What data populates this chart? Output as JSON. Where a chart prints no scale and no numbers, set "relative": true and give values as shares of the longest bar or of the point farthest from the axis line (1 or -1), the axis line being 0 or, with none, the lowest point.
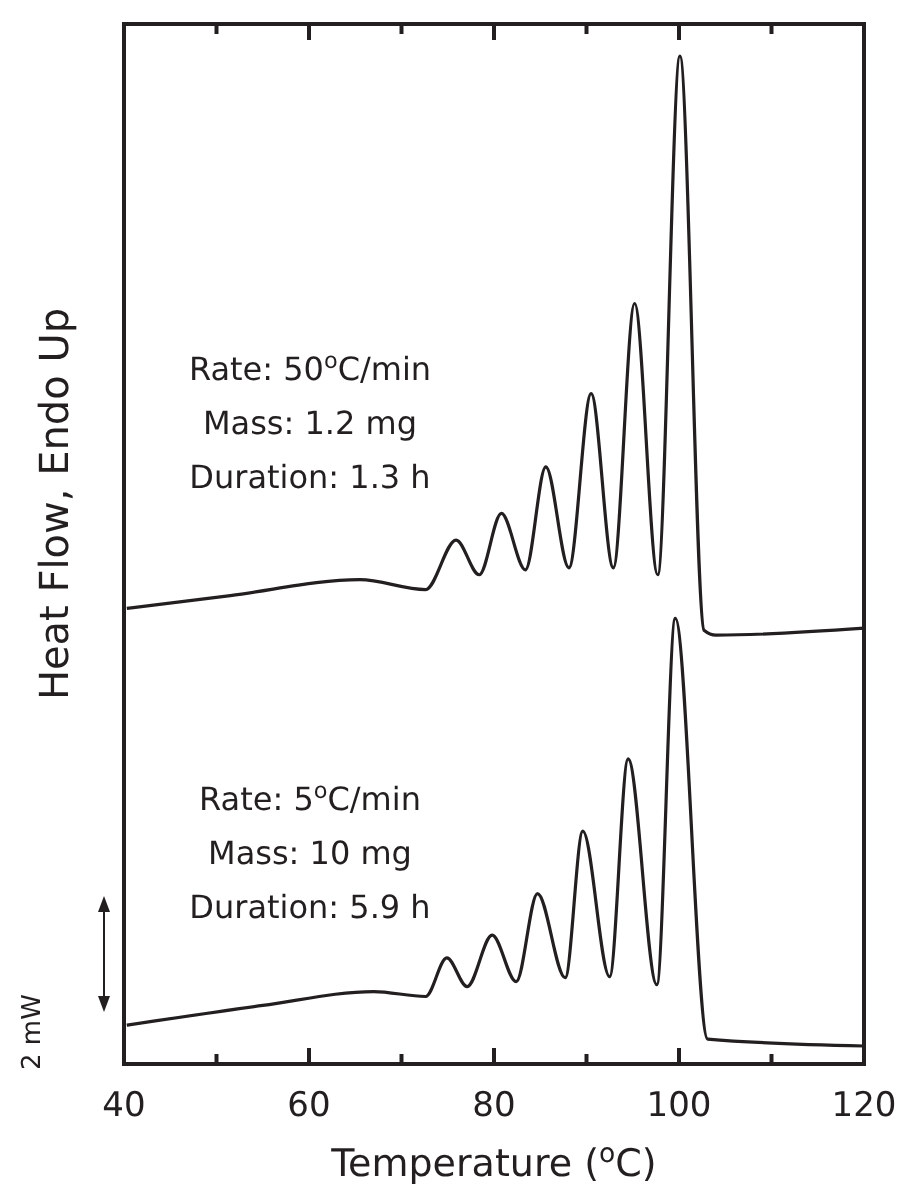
{
  "chart_data": {
    "type": "line",
    "relative": true,
    "xlabel": "Temperature ($^{o}$C)",
    "ylabel": "Heat Flow, Endo Up",
    "xlim": [
      40,
      120
    ],
    "xticks": [
      40,
      {
        "value": 50,
        "label": null
      },
      60,
      {
        "value": 70,
        "label": null
      },
      80,
      {
        "value": 90,
        "label": null
      },
      100,
      {
        "value": 110,
        "label": null
      },
      120
    ],
    "series": [
      {
        "color": "#231f20",
        "x": [
          40.3,
          51.5,
          65.5,
          72.6,
          75.9,
          78.4,
          80.8,
          83.4,
          85.6,
          88.1,
          90.5,
          92.9,
          95.2,
          97.7,
          100.1,
          102.7,
          104,
          120
        ],
        "values": [
          0.442,
          0.455,
          0.471,
          0.461,
          0.511,
          0.476,
          0.538,
          0.481,
          0.585,
          0.483,
          0.659,
          0.483,
          0.75,
          0.476,
          1,
          0.42,
          0.415,
          0.422
        ]
      },
      {
        "color": "#231f20",
        "x": [
          40.3,
          55,
          67,
          72.6,
          74.9,
          77.1,
          79.8,
          82.4,
          84.7,
          87.7,
          89.6,
          92.5,
          94.5,
          97.6,
          99.6,
          103.1,
          120
        ],
        "values": [
          0.021,
          0.041,
          0.055,
          0.05,
          0.089,
          0.06,
          0.112,
          0.065,
          0.154,
          0.069,
          0.217,
          0.07,
          0.29,
          0.062,
          0.432,
          0.007,
          0
        ]
      }
    ],
    "annotations": [
      "Rate: 50$^{o}$C/min\nMass: 1.2 mg\nDuration: 1.3 h",
      "Rate: 5$^{o}$C/min\nMass: 10 mg\nDuration: 5.9 h",
      "2 mW"
    ],
    "marker": "none",
    "line_style": "solid",
    "grid": false
  }
}
